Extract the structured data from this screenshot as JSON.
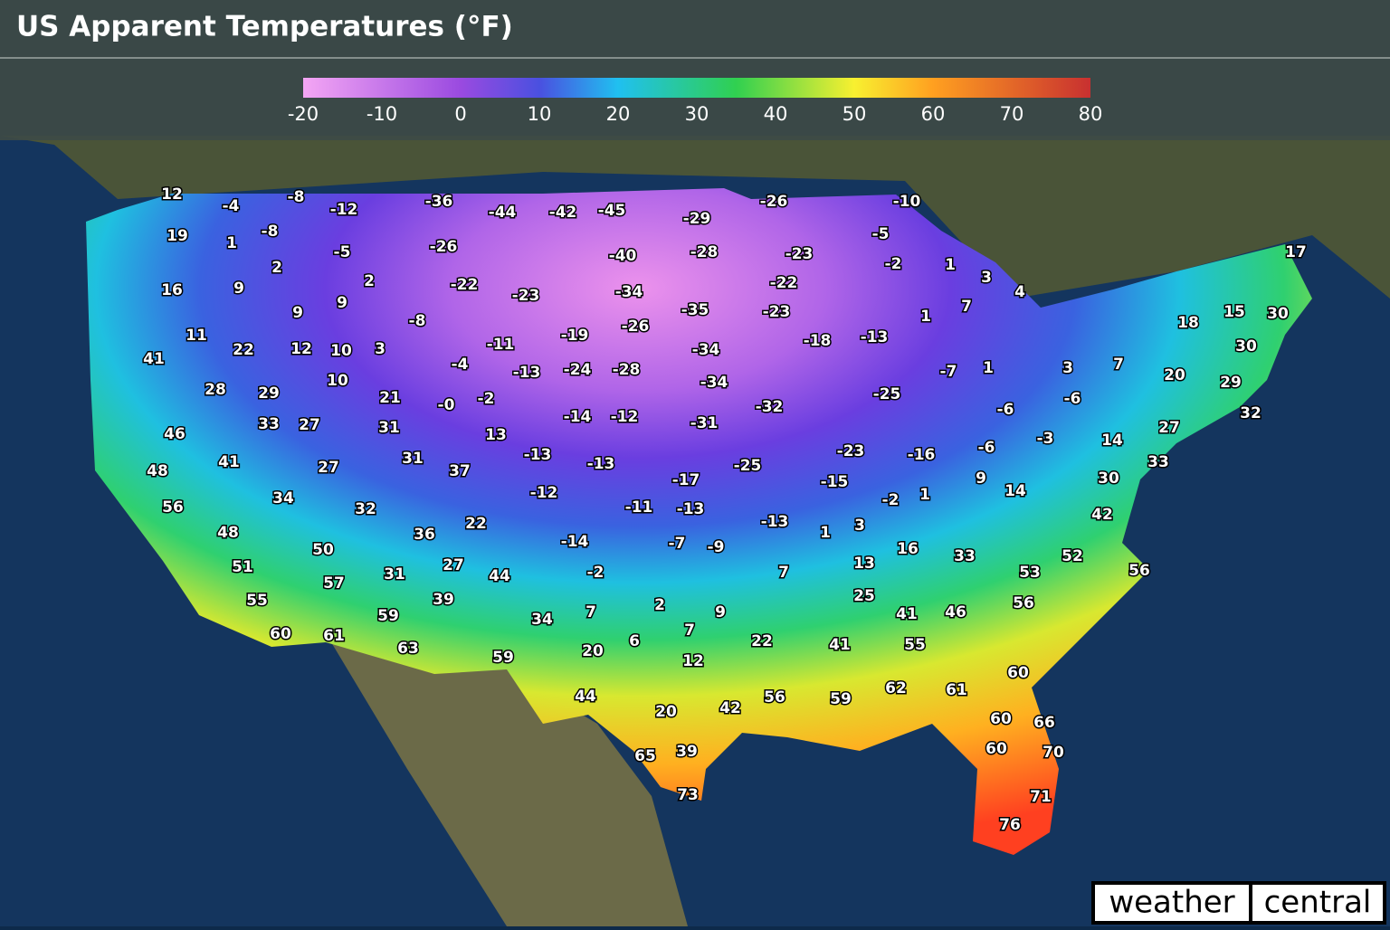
{
  "header": {
    "title": "US Apparent Temperatures (°F)"
  },
  "legend": {
    "ticks": [
      -20,
      -10,
      0,
      10,
      20,
      30,
      40,
      50,
      60,
      70,
      80
    ]
  },
  "labels": [
    "12",
    "-4",
    "-8",
    "-12",
    "-36",
    "-44",
    "-42",
    "-45",
    "-29",
    "-26",
    "-10",
    "19",
    "1",
    "-8",
    "-5",
    "-26",
    "-40",
    "-28",
    "-23",
    "-5",
    "-2",
    "1",
    "3",
    "4",
    "17",
    "2",
    "16",
    "9",
    "2",
    "-22",
    "-23",
    "-34",
    "-22",
    "9",
    "9",
    "-35",
    "-23",
    "1",
    "7",
    "18",
    "15",
    "30",
    "11",
    "22",
    "12",
    "10",
    "3",
    "-8",
    "-11",
    "-19",
    "-26",
    "-34",
    "-18",
    "-13",
    "30",
    "41",
    "-4",
    "-13",
    "-24",
    "-28",
    "-7",
    "1",
    "3",
    "7",
    "20",
    "29",
    "10",
    "-34",
    "28",
    "29",
    "21",
    "-0",
    "-2",
    "-32",
    "-25",
    "-6",
    "-6",
    "32",
    "33",
    "27",
    "31",
    "13",
    "-14",
    "-12",
    "-31",
    "46",
    "27",
    "14",
    "-3",
    "-6",
    "41",
    "48",
    "27",
    "31",
    "37",
    "-13",
    "-13",
    "-17",
    "-25",
    "-23",
    "-16",
    "33",
    "30",
    "56",
    "34",
    "32",
    "-12",
    "-11",
    "-13",
    "-15",
    "-2",
    "1",
    "9",
    "14",
    "42",
    "48",
    "22",
    "36",
    "-14",
    "-7",
    "-9",
    "-13",
    "1",
    "3",
    "16",
    "33",
    "52",
    "51",
    "50",
    "57",
    "31",
    "27",
    "44",
    "-2",
    "7",
    "13",
    "53",
    "56",
    "55",
    "39",
    "2",
    "9",
    "25",
    "41",
    "46",
    "56",
    "59",
    "34",
    "7",
    "6",
    "7",
    "60",
    "61",
    "63",
    "20",
    "12",
    "22",
    "41",
    "55",
    "59",
    "60",
    "44",
    "20",
    "42",
    "56",
    "59",
    "62",
    "61",
    "60",
    "66",
    "65",
    "39",
    "60",
    "70",
    "73",
    "71",
    "76"
  ],
  "brand": {
    "left": "weather",
    "right": "central"
  }
}
